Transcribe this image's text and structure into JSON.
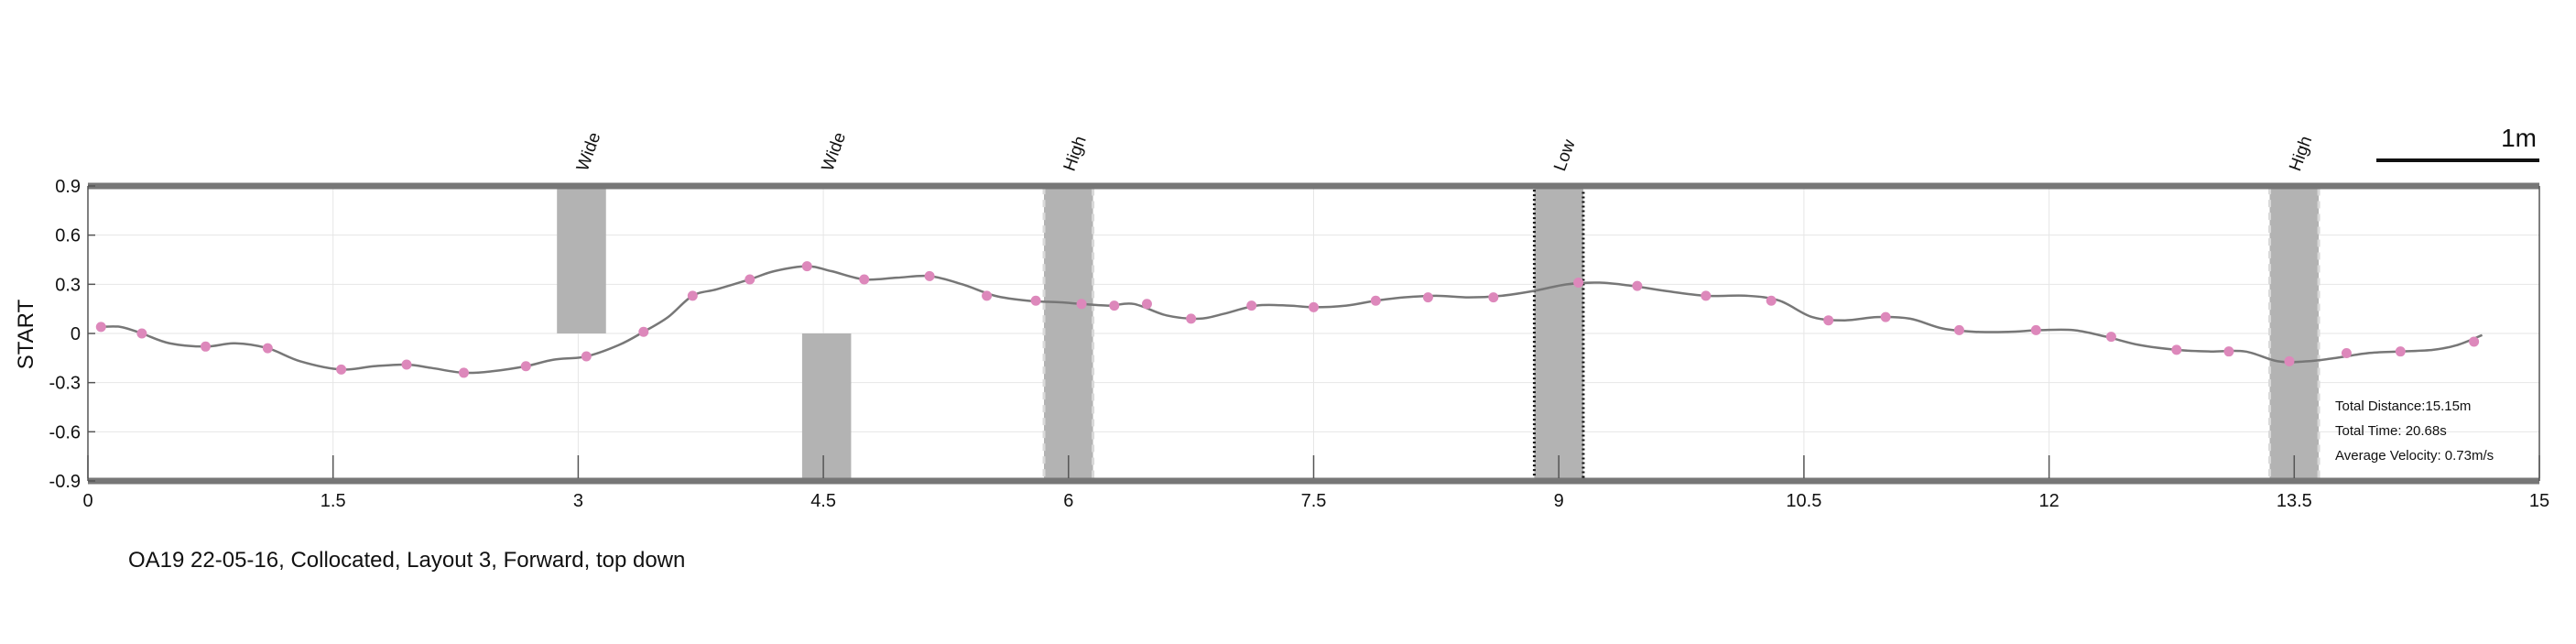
{
  "caption": "OA19 22-05-16, Collocated, Layout 3, Forward, top down",
  "scale_bar_label": "1m",
  "colors": {
    "path": "#777777",
    "marker": "#dd88bb",
    "obstacle": "#b3b3b3",
    "boundary": "#777777",
    "grid": "#e6e6e6"
  },
  "stats": {
    "distance": "Total Distance:15.15m",
    "time": "Total Time: 20.68s",
    "velocity": "Average Velocity: 0.73m/s"
  },
  "chart_data": {
    "type": "line",
    "title": "",
    "xlabel": "",
    "ylabel": "START",
    "xlim": [
      0,
      15
    ],
    "ylim": [
      -0.9,
      0.9
    ],
    "x_ticks": [
      0,
      1.5,
      3,
      4.5,
      6,
      7.5,
      9,
      10.5,
      12,
      13.5,
      15
    ],
    "x_tick_labels": [
      "0",
      "1.5",
      "3",
      "4.5",
      "6",
      "7.5",
      "9",
      "10.5",
      "12",
      "13.5",
      "15"
    ],
    "y_ticks": [
      0.9,
      0.6,
      0.3,
      0,
      -0.3,
      -0.6,
      -0.9
    ],
    "y_tick_labels": [
      "0.9",
      "0.6",
      "0.3",
      "0",
      "-0.3",
      "-0.6",
      "-0.9"
    ],
    "grid": true,
    "obstacles": [
      {
        "label": "Wide",
        "x0": 2.87,
        "x1": 3.17,
        "y0": 0.0,
        "y1": 0.9,
        "style": "solid"
      },
      {
        "label": "Wide",
        "x0": 4.37,
        "x1": 4.67,
        "y0": -0.9,
        "y1": 0.0,
        "style": "solid"
      },
      {
        "label": "High",
        "x0": 5.85,
        "x1": 6.15,
        "y0": -0.9,
        "y1": 0.9,
        "style": "dashed"
      },
      {
        "label": "Low",
        "x0": 8.85,
        "x1": 9.15,
        "y0": -0.9,
        "y1": 0.9,
        "style": "dotted"
      },
      {
        "label": "High",
        "x0": 13.35,
        "x1": 13.65,
        "y0": -0.9,
        "y1": 0.9,
        "style": "dashed"
      }
    ],
    "path": {
      "x": [
        0.08,
        0.2,
        0.33,
        0.5,
        0.72,
        0.9,
        1.1,
        1.3,
        1.55,
        1.75,
        1.95,
        2.1,
        2.3,
        2.48,
        2.68,
        2.85,
        3.05,
        3.25,
        3.4,
        3.55,
        3.7,
        3.85,
        4.05,
        4.2,
        4.4,
        4.55,
        4.75,
        4.95,
        5.15,
        5.35,
        5.55,
        5.75,
        5.95,
        6.08,
        6.25,
        6.4,
        6.6,
        6.8,
        6.95,
        7.15,
        7.35,
        7.5,
        7.7,
        7.88,
        8.05,
        8.25,
        8.45,
        8.65,
        8.85,
        9.05,
        9.25,
        9.45,
        9.65,
        9.9,
        10.15,
        10.35,
        10.55,
        10.75,
        10.95,
        11.15,
        11.35,
        11.55,
        11.75,
        11.95,
        12.15,
        12.35,
        12.55,
        12.78,
        12.98,
        13.2,
        13.4,
        13.58,
        13.75,
        13.95,
        14.15,
        14.35,
        14.5,
        14.65
      ],
      "y": [
        0.04,
        0.04,
        0.0,
        -0.06,
        -0.08,
        -0.06,
        -0.09,
        -0.17,
        -0.22,
        -0.2,
        -0.19,
        -0.21,
        -0.24,
        -0.23,
        -0.2,
        -0.16,
        -0.14,
        -0.07,
        0.01,
        0.1,
        0.23,
        0.27,
        0.33,
        0.38,
        0.41,
        0.38,
        0.33,
        0.34,
        0.35,
        0.3,
        0.23,
        0.2,
        0.19,
        0.18,
        0.17,
        0.18,
        0.11,
        0.09,
        0.12,
        0.17,
        0.17,
        0.16,
        0.17,
        0.2,
        0.22,
        0.23,
        0.22,
        0.23,
        0.26,
        0.3,
        0.31,
        0.29,
        0.26,
        0.23,
        0.23,
        0.2,
        0.1,
        0.08,
        0.1,
        0.09,
        0.03,
        0.01,
        0.01,
        0.02,
        0.02,
        -0.02,
        -0.07,
        -0.1,
        -0.11,
        -0.11,
        -0.17,
        -0.17,
        -0.15,
        -0.12,
        -0.11,
        -0.1,
        -0.07,
        -0.01
      ]
    },
    "markers": {
      "x": [
        0.08,
        0.33,
        0.72,
        1.1,
        1.55,
        1.95,
        2.3,
        2.68,
        3.05,
        3.4,
        3.7,
        4.05,
        4.4,
        4.75,
        5.15,
        5.5,
        5.8,
        6.08,
        6.28,
        6.48,
        6.75,
        7.12,
        7.5,
        7.88,
        8.2,
        8.6,
        9.12,
        9.48,
        9.9,
        10.3,
        10.65,
        11.0,
        11.45,
        11.92,
        12.38,
        12.78,
        13.1,
        13.47,
        13.82,
        14.15,
        14.6
      ],
      "y": [
        0.04,
        0.0,
        -0.08,
        -0.09,
        -0.22,
        -0.19,
        -0.24,
        -0.2,
        -0.14,
        0.01,
        0.23,
        0.33,
        0.41,
        0.33,
        0.35,
        0.23,
        0.2,
        0.18,
        0.17,
        0.18,
        0.09,
        0.17,
        0.16,
        0.2,
        0.22,
        0.22,
        0.31,
        0.29,
        0.23,
        0.2,
        0.08,
        0.1,
        0.02,
        0.02,
        -0.02,
        -0.1,
        -0.11,
        -0.17,
        -0.12,
        -0.11,
        -0.05
      ]
    }
  }
}
